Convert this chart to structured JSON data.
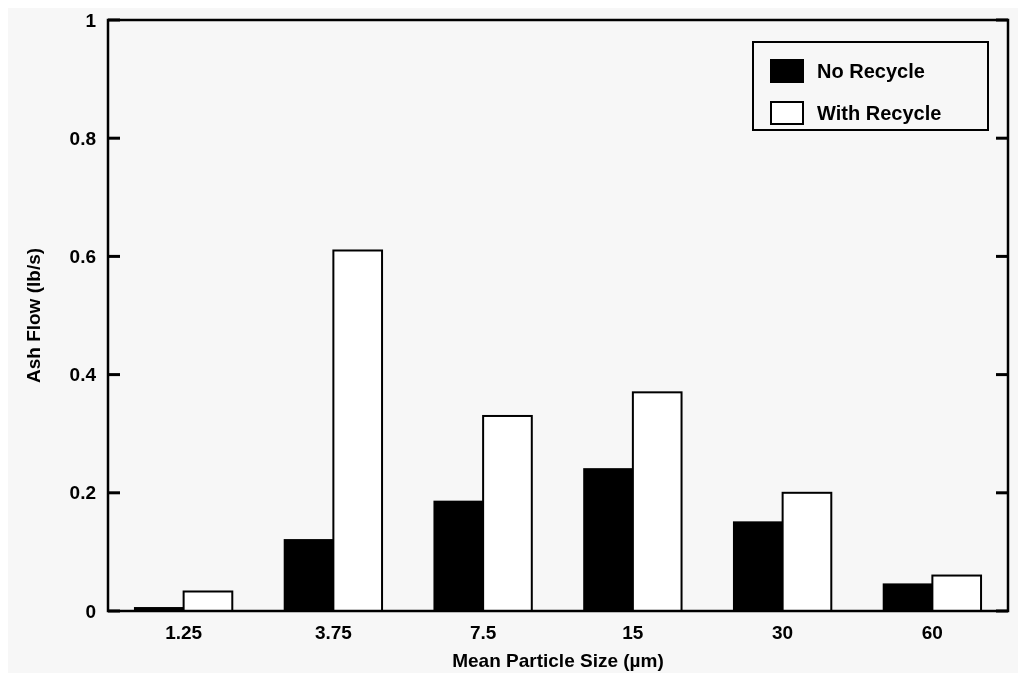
{
  "chart_data": {
    "type": "bar",
    "xlabel": "Mean Particle Size (µm)",
    "ylabel": "Ash Flow (lb/s)",
    "categories": [
      "1.25",
      "3.75",
      "7.5",
      "15",
      "30",
      "60"
    ],
    "series": [
      {
        "name": "No Recycle",
        "color": "#000000",
        "values": [
          0.005,
          0.12,
          0.185,
          0.24,
          0.15,
          0.045
        ]
      },
      {
        "name": "With Recycle",
        "color": "#ffffff",
        "values": [
          0.033,
          0.61,
          0.33,
          0.37,
          0.2,
          0.06
        ]
      }
    ],
    "ylim": [
      0,
      1
    ],
    "yticks": [
      0,
      {
        "value": 0.2,
        "label": "0.2"
      },
      {
        "value": 0.4,
        "label": "0.4"
      },
      {
        "value": 0.6,
        "label": "0.6"
      },
      {
        "value": 0.8,
        "label": "0.8"
      },
      1
    ],
    "grid": false,
    "legend": "top right"
  }
}
